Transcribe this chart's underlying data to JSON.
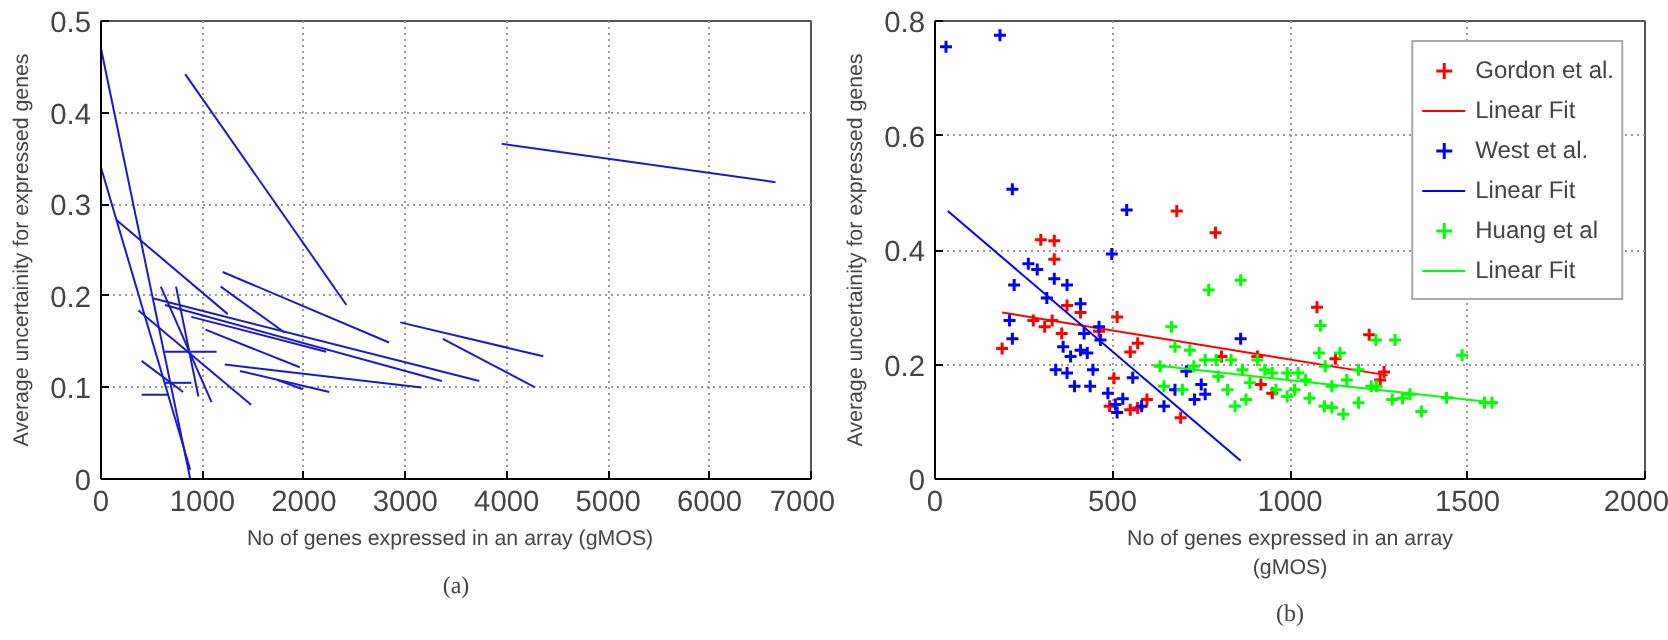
{
  "chart_data": [
    {
      "type": "line",
      "xlabel": "No of genes expressed in an array   (gMOS)",
      "ylabel": "Average uncertainity for expressed genes",
      "annotations": [
        "(a)"
      ],
      "xlim": [
        0,
        7000
      ],
      "ylim": [
        0,
        0.5
      ],
      "xticks": [
        0,
        1000,
        2000,
        3000,
        4000,
        5000,
        6000,
        7000
      ],
      "yticks": [
        0,
        0.1,
        0.2,
        0.3,
        0.4,
        0.5
      ],
      "grid": true,
      "marker": "none",
      "line_style": "solid",
      "series": [
        {
          "color": "#1a1acc",
          "x": [
            0,
            880
          ],
          "values": [
            0.47,
            0.0
          ]
        },
        {
          "color": "#1a1acc",
          "x": [
            0,
            880
          ],
          "values": [
            0.34,
            0.01
          ]
        },
        {
          "color": "#1a1acc",
          "x": [
            150,
            1250
          ],
          "values": [
            0.283,
            0.18
          ]
        },
        {
          "color": "#1a1acc",
          "x": [
            830,
            2420
          ],
          "values": [
            0.442,
            0.19
          ]
        },
        {
          "color": "#1a1acc",
          "x": [
            3950,
            6650
          ],
          "values": [
            0.366,
            0.324
          ]
        },
        {
          "color": "#1a1acc",
          "x": [
            1200,
            2840
          ],
          "values": [
            0.226,
            0.149
          ]
        },
        {
          "color": "#1a1acc",
          "x": [
            2950,
            4360
          ],
          "values": [
            0.171,
            0.134
          ]
        },
        {
          "color": "#1a1acc",
          "x": [
            3370,
            4280
          ],
          "values": [
            0.153,
            0.1
          ]
        },
        {
          "color": "#1a1acc",
          "x": [
            520,
            3730
          ],
          "values": [
            0.197,
            0.107
          ]
        },
        {
          "color": "#1a1acc",
          "x": [
            630,
            3360
          ],
          "values": [
            0.19,
            0.107
          ]
        },
        {
          "color": "#1a1acc",
          "x": [
            1180,
            1810
          ],
          "values": [
            0.21,
            0.16
          ]
        },
        {
          "color": "#1a1acc",
          "x": [
            1220,
            3160
          ],
          "values": [
            0.125,
            0.1
          ]
        },
        {
          "color": "#1a1acc",
          "x": [
            1370,
            2250
          ],
          "values": [
            0.118,
            0.095
          ]
        },
        {
          "color": "#1a1acc",
          "x": [
            370,
            1480
          ],
          "values": [
            0.184,
            0.081
          ]
        },
        {
          "color": "#1a1acc",
          "x": [
            590,
            1090
          ],
          "values": [
            0.21,
            0.084
          ]
        },
        {
          "color": "#1a1acc",
          "x": [
            740,
            960
          ],
          "values": [
            0.21,
            0.09
          ]
        },
        {
          "color": "#1a1acc",
          "x": [
            400,
            810
          ],
          "values": [
            0.129,
            0.095
          ]
        },
        {
          "color": "#1a1acc",
          "x": [
            400,
            660
          ],
          "values": [
            0.092,
            0.092
          ]
        },
        {
          "color": "#1a1acc",
          "x": [
            630,
            1140
          ],
          "values": [
            0.139,
            0.139
          ]
        },
        {
          "color": "#1a1acc",
          "x": [
            630,
            890
          ],
          "values": [
            0.105,
            0.105
          ]
        },
        {
          "color": "#1a1acc",
          "x": [
            1740,
            1990
          ],
          "values": [
            0.108,
            0.098
          ]
        },
        {
          "color": "#1a1acc",
          "x": [
            890,
            2220
          ],
          "values": [
            0.177,
            0.139
          ]
        },
        {
          "color": "#1a1acc",
          "x": [
            1030,
            1960
          ],
          "values": [
            0.163,
            0.122
          ]
        }
      ]
    },
    {
      "type": "scatter",
      "xlabel": "No of genes expressed in an array\n(gMOS)",
      "ylabel": "Average uncertainity for expressed genes",
      "annotations": [
        "(b)"
      ],
      "xlim": [
        0,
        2000
      ],
      "ylim": [
        0,
        0.8
      ],
      "xticks": [
        0,
        500,
        1000,
        1500,
        2000
      ],
      "yticks": [
        0,
        0.2,
        0.4,
        0.6,
        0.8
      ],
      "grid": true,
      "legend": "top right",
      "series": [
        {
          "type": "scatter",
          "name": "Gordon et al.",
          "color": "#ff0000",
          "marker": "cross",
          "x": [
            189,
            298,
            336,
            336,
            330,
            309,
            277,
            357,
            372,
            410,
            513,
            462,
            550,
            571,
            550,
            571,
            597,
            504,
            681,
            790,
            692,
            1076,
            1223,
            908,
            1265,
            1128,
            918,
            950,
            1254,
            492,
            807
          ],
          "values": [
            0.228,
            0.418,
            0.416,
            0.384,
            0.277,
            0.266,
            0.277,
            0.254,
            0.303,
            0.291,
            0.283,
            0.258,
            0.222,
            0.237,
            0.121,
            0.124,
            0.139,
            0.176,
            0.468,
            0.43,
            0.107,
            0.3,
            0.252,
            0.214,
            0.187,
            0.21,
            0.165,
            0.15,
            0.173,
            0.127,
            0.214
          ]
        },
        {
          "type": "line",
          "name": "Linear Fit",
          "color": "#ff0000",
          "marker": "none",
          "x": [
            189,
            1275
          ],
          "values": [
            0.291,
            0.181
          ]
        },
        {
          "type": "scatter",
          "name": "West et al.",
          "color": "#0000ff",
          "marker": "cross",
          "x": [
            31,
            183,
            218,
            540,
            498,
            223,
            263,
            288,
            315,
            336,
            372,
            410,
            210,
            218,
            340,
            372,
            393,
            382,
            429,
            466,
            445,
            487,
            508,
            529,
            557,
            582,
            645,
            708,
            750,
            761,
            861,
            420,
            462,
            410,
            361,
            437,
            513,
            676,
            731
          ],
          "values": [
            0.755,
            0.775,
            0.506,
            0.47,
            0.393,
            0.339,
            0.376,
            0.366,
            0.316,
            0.35,
            0.339,
            0.306,
            0.277,
            0.245,
            0.191,
            0.185,
            0.162,
            0.214,
            0.22,
            0.243,
            0.191,
            0.15,
            0.13,
            0.14,
            0.177,
            0.127,
            0.127,
            0.188,
            0.165,
            0.148,
            0.245,
            0.254,
            0.266,
            0.225,
            0.231,
            0.162,
            0.116,
            0.156,
            0.139
          ]
        },
        {
          "type": "line",
          "name": "Linear Fit",
          "color": "#0000ff",
          "marker": "none",
          "x": [
            36,
            861
          ],
          "values": [
            0.468,
            0.032
          ]
        },
        {
          "type": "scatter",
          "name": "Huang et al",
          "color": "#00ff00",
          "marker": "cross",
          "x": [
            1086,
            861,
            771,
            1082,
            1242,
            1296,
            1485,
            1441,
            1548,
            1569,
            1370,
            1288,
            1229,
            1193,
            1141,
            1099,
            1044,
            1013,
            992,
            950,
            908,
            887,
            876,
            845,
            824,
            798,
            761,
            718,
            676,
            666,
            634,
            645,
            697,
            729,
            792,
            960,
            1023,
            1118,
            1150,
            1193,
            1244,
            1317,
            1338,
            1118,
            1055,
            992,
            929,
            866,
            834,
            1097,
            1160
          ],
          "values": [
            0.268,
            0.347,
            0.33,
            0.22,
            0.243,
            0.243,
            0.216,
            0.142,
            0.133,
            0.133,
            0.118,
            0.139,
            0.162,
            0.191,
            0.22,
            0.197,
            0.173,
            0.156,
            0.144,
            0.185,
            0.208,
            0.168,
            0.139,
            0.127,
            0.156,
            0.179,
            0.208,
            0.225,
            0.231,
            0.266,
            0.197,
            0.162,
            0.156,
            0.197,
            0.208,
            0.156,
            0.185,
            0.125,
            0.113,
            0.133,
            0.162,
            0.141,
            0.148,
            0.162,
            0.141,
            0.185,
            0.191,
            0.191,
            0.208,
            0.127,
            0.173
          ]
        },
        {
          "type": "line",
          "name": "Linear Fit",
          "color": "#00ff00",
          "marker": "none",
          "x": [
            613,
            1580
          ],
          "values": [
            0.199,
            0.133
          ]
        }
      ]
    }
  ]
}
